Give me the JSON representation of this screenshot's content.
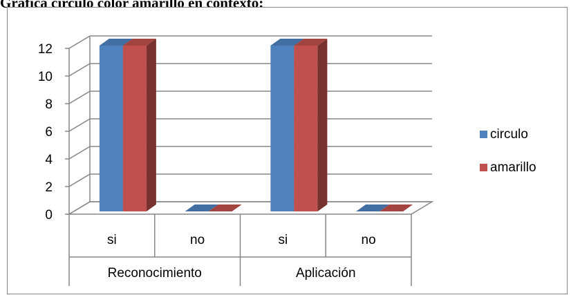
{
  "caption": "Gráfica círculo color amarillo en contexto:",
  "chart_data": {
    "type": "bar",
    "style": "3d-clustered",
    "groups": [
      "Reconocimiento",
      "Aplicación"
    ],
    "categories": [
      "si",
      "no",
      "si",
      "no"
    ],
    "series": [
      {
        "name": "circulo",
        "values": [
          12,
          0,
          12,
          0
        ],
        "color": "#4F81BD"
      },
      {
        "name": "amarillo",
        "values": [
          12,
          0,
          12,
          0
        ],
        "color": "#C0504D"
      }
    ],
    "ylim": [
      0,
      12
    ],
    "yticks": [
      0,
      2,
      4,
      6,
      8,
      10,
      12
    ],
    "grid": true,
    "legend": "right",
    "title": "",
    "xlabel": "",
    "ylabel": ""
  }
}
